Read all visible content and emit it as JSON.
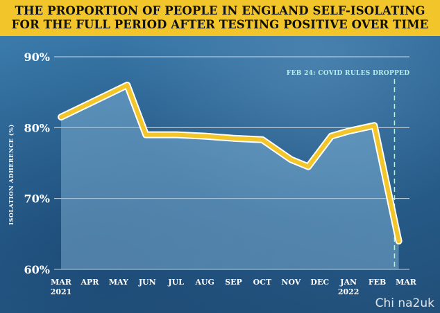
{
  "title": "THE PROPORTION OF PEOPLE IN ENGLAND SELF-ISOLATING\nFOR THE FULL PERIOD AFTER TESTING POSITIVE OVER TIME",
  "watermark": "Chi na2uk",
  "colors": {
    "title_bg": "#f2c62a",
    "line": "#f2c62a",
    "line_outline": "#ffffff",
    "area": "#6fa7d1",
    "annotation": "#b8f0e6"
  },
  "chart_data": {
    "type": "area",
    "title": "THE PROPORTION OF PEOPLE IN ENGLAND SELF-ISOLATING FOR THE FULL PERIOD AFTER TESTING POSITIVE OVER TIME",
    "ylabel": "ISOLATION ADHERENCE (%)",
    "xlabel": "",
    "categories": [
      "MAR",
      "APR",
      "MAY",
      "JUN",
      "JUL",
      "AUG",
      "SEP",
      "OCT",
      "NOV",
      "DEC",
      "JAN",
      "FEB",
      "MAR"
    ],
    "year_labels": [
      {
        "category_index": 0,
        "label": "2021"
      },
      {
        "category_index": 10,
        "label": "2022"
      }
    ],
    "series": [
      {
        "x_index": [
          0,
          2.3,
          2.95,
          4.0,
          5.0,
          6.0,
          7.0,
          8.0,
          8.6,
          9.4,
          10.0,
          10.9,
          11.75
        ],
        "values": [
          81.5,
          86.0,
          79.0,
          79.0,
          78.8,
          78.5,
          78.3,
          75.5,
          74.5,
          78.8,
          79.5,
          80.3,
          64.0
        ]
      }
    ],
    "ylim": [
      60,
      90
    ],
    "yticks": [
      60,
      70,
      80,
      90
    ],
    "ytick_labels": [
      "60%",
      "70%",
      "80%",
      "90%"
    ],
    "annotations": [
      {
        "text": "FEB 24: COVID RULES DROPPED",
        "x_index": 11.6,
        "style": "dashed-vertical-line"
      }
    ],
    "grid": true
  }
}
